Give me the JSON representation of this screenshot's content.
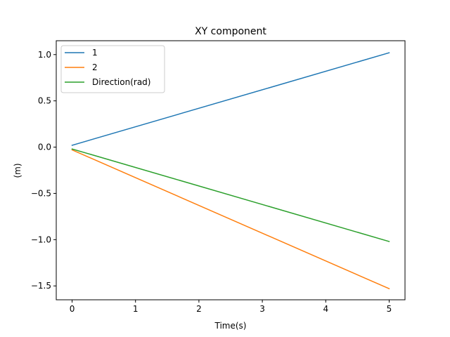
{
  "chart_data": {
    "type": "line",
    "title": "XY component",
    "xlabel": "Time(s)",
    "ylabel": "(m)",
    "xlim": [
      -0.25,
      5.25
    ],
    "ylim": [
      -1.65,
      1.15
    ],
    "xticks": [
      0,
      1,
      2,
      3,
      4,
      5
    ],
    "yticks": [
      -1.5,
      -1.0,
      -0.5,
      0.0,
      0.5,
      1.0
    ],
    "xtick_labels": [
      "0",
      "1",
      "2",
      "3",
      "4",
      "5"
    ],
    "ytick_labels": [
      "−1.5",
      "−1.0",
      "−0.5",
      "0.0",
      "0.5",
      "1.0"
    ],
    "grid": false,
    "legend_position": "top-left",
    "series": [
      {
        "name": "1",
        "color": "#1f77b4",
        "x": [
          0,
          5
        ],
        "y": [
          0.02,
          1.02
        ]
      },
      {
        "name": "2",
        "color": "#ff7f0e",
        "x": [
          0,
          5
        ],
        "y": [
          -0.03,
          -1.53
        ]
      },
      {
        "name": "Direction(rad)",
        "color": "#2ca02c",
        "x": [
          0,
          5
        ],
        "y": [
          -0.02,
          -1.02
        ]
      }
    ]
  }
}
